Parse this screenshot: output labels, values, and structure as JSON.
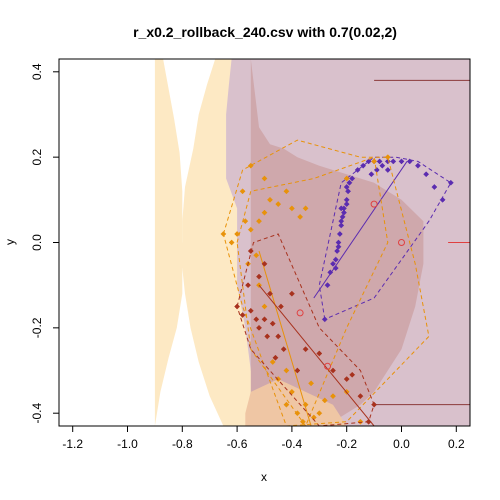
{
  "chart_data": {
    "type": "scatter",
    "title": "r_x0.2_rollback_240.csv with 0.7(0.02,2)",
    "xlabel": "x",
    "ylabel": "y",
    "xlim": [
      -1.25,
      0.25
    ],
    "ylim": [
      -0.43,
      0.43
    ],
    "xticks": [
      -1.2,
      -1.0,
      -0.8,
      -0.6,
      -0.4,
      -0.2,
      0.0,
      0.2
    ],
    "xtick_labels": [
      "-1.2",
      "-1.0",
      "-0.8",
      "-0.6",
      "-0.4",
      "-0.2",
      "0.0",
      "0.2"
    ],
    "yticks": [
      -0.4,
      -0.2,
      0.0,
      0.2,
      0.4
    ],
    "ytick_labels": [
      "-0.4",
      "-0.2",
      "0.0",
      "0.2",
      "0.4"
    ],
    "grid": false,
    "regions": [
      {
        "color": "#fde9c4",
        "points": [
          [
            -0.9,
            -0.43
          ],
          [
            -0.9,
            0.43
          ],
          [
            -0.87,
            0.43
          ],
          [
            -0.85,
            0.36
          ],
          [
            -0.83,
            0.29
          ],
          [
            -0.81,
            0.21
          ],
          [
            -0.8,
            0.12
          ],
          [
            -0.8,
            -0.12
          ],
          [
            -0.82,
            -0.2
          ],
          [
            -0.85,
            -0.27
          ],
          [
            -0.88,
            -0.35
          ],
          [
            -0.9,
            -0.43
          ]
        ]
      },
      {
        "color": "#fde9c4",
        "points": [
          [
            -0.68,
            0.43
          ],
          [
            -0.71,
            0.37
          ],
          [
            -0.74,
            0.3
          ],
          [
            -0.76,
            0.22
          ],
          [
            -0.79,
            0.13
          ],
          [
            -0.8,
            0.05
          ],
          [
            -0.8,
            0.0
          ],
          [
            -0.88,
            0.0
          ],
          [
            -0.88,
            -0.04
          ],
          [
            -0.8,
            -0.06
          ],
          [
            -0.79,
            -0.12
          ],
          [
            -0.77,
            -0.2
          ],
          [
            -0.74,
            -0.28
          ],
          [
            -0.7,
            -0.36
          ],
          [
            -0.65,
            -0.43
          ],
          [
            0.25,
            -0.43
          ],
          [
            0.25,
            0.43
          ]
        ]
      },
      {
        "color": "#d9c1cc",
        "points": [
          [
            -0.62,
            0.43
          ],
          [
            -0.63,
            0.37
          ],
          [
            -0.64,
            0.3
          ],
          [
            -0.64,
            0.25
          ],
          [
            -0.64,
            0.15
          ],
          [
            -0.6,
            0.08
          ],
          [
            -0.6,
            -0.1
          ],
          [
            -0.57,
            -0.2
          ],
          [
            -0.55,
            -0.3
          ],
          [
            -0.5,
            -0.38
          ],
          [
            -0.48,
            -0.43
          ],
          [
            0.25,
            -0.43
          ],
          [
            0.25,
            0.43
          ]
        ]
      },
      {
        "color": "#cfa8ac",
        "points": [
          [
            -0.55,
            0.43
          ],
          [
            -0.52,
            0.27
          ],
          [
            -0.48,
            0.23
          ],
          [
            -0.43,
            0.22
          ],
          [
            -0.38,
            0.2
          ],
          [
            -0.3,
            0.18
          ],
          [
            -0.2,
            0.16
          ],
          [
            -0.1,
            0.14
          ],
          [
            0.0,
            0.1
          ],
          [
            0.08,
            0.05
          ],
          [
            0.08,
            -0.05
          ],
          [
            0.05,
            -0.15
          ],
          [
            0.0,
            -0.25
          ],
          [
            -0.05,
            -0.3
          ],
          [
            -0.1,
            -0.35
          ],
          [
            -0.15,
            -0.38
          ],
          [
            -0.2,
            -0.4
          ],
          [
            -0.25,
            -0.42
          ],
          [
            -0.3,
            -0.43
          ],
          [
            -0.55,
            -0.43
          ]
        ]
      },
      {
        "color": "#efc6a4",
        "points": [
          [
            -0.57,
            -0.43
          ],
          [
            -0.57,
            -0.4
          ],
          [
            -0.55,
            -0.35
          ],
          [
            -0.45,
            -0.32
          ],
          [
            -0.35,
            -0.35
          ],
          [
            -0.25,
            -0.38
          ],
          [
            -0.2,
            -0.43
          ]
        ]
      },
      {
        "color": "#d9c1cc",
        "points": [
          [
            -0.35,
            0.43
          ],
          [
            -0.35,
            0.33
          ],
          [
            -0.3,
            0.33
          ],
          [
            -0.2,
            0.34
          ],
          [
            -0.1,
            0.35
          ],
          [
            0.0,
            0.36
          ],
          [
            0.1,
            0.38
          ],
          [
            0.25,
            0.38
          ],
          [
            0.25,
            0.43
          ]
        ]
      }
    ],
    "hlines": [
      {
        "y": 0.38,
        "x_from": -0.1,
        "x_to": 0.25,
        "color": "#8b3a3a"
      },
      {
        "y": -0.38,
        "x_from": -0.1,
        "x_to": 0.25,
        "color": "#8b3a3a"
      },
      {
        "y": 0.0,
        "x_from": 0.17,
        "x_to": 0.25,
        "color": "#e04040"
      }
    ],
    "series": [
      {
        "color": "#5b2cb0",
        "points": [
          [
            -0.28,
            -0.18
          ],
          [
            -0.25,
            -0.05
          ],
          [
            -0.24,
            -0.06
          ],
          [
            -0.235,
            -0.02
          ],
          [
            -0.23,
            0.0
          ],
          [
            -0.225,
            0.02
          ],
          [
            -0.22,
            0.04
          ],
          [
            -0.215,
            0.06
          ],
          [
            -0.21,
            0.08
          ],
          [
            -0.2,
            0.1
          ],
          [
            -0.195,
            0.12
          ],
          [
            -0.19,
            0.14
          ],
          [
            -0.18,
            0.15
          ],
          [
            -0.16,
            0.17
          ],
          [
            -0.14,
            0.18
          ],
          [
            -0.12,
            0.19
          ],
          [
            -0.1,
            0.19
          ],
          [
            -0.08,
            0.19
          ],
          [
            -0.05,
            0.19
          ],
          [
            -0.03,
            0.19
          ],
          [
            0.0,
            0.19
          ],
          [
            0.03,
            0.19
          ],
          [
            0.06,
            0.18
          ],
          [
            0.09,
            0.16
          ],
          [
            0.12,
            0.13
          ],
          [
            0.15,
            0.1
          ],
          [
            0.18,
            0.14
          ],
          [
            -0.05,
            0.17
          ],
          [
            -0.07,
            0.18
          ],
          [
            -0.09,
            0.17
          ],
          [
            -0.11,
            0.16
          ],
          [
            -0.2,
            0.13
          ],
          [
            -0.22,
            0.08
          ],
          [
            -0.23,
            -0.01
          ],
          [
            -0.24,
            -0.04
          ],
          [
            -0.26,
            -0.07
          ],
          [
            -0.27,
            -0.1
          ],
          [
            -0.22,
            0.05
          ],
          [
            -0.21,
            0.07
          ],
          [
            -0.2,
            0.09
          ]
        ],
        "hull": [
          [
            -0.28,
            -0.18
          ],
          [
            -0.3,
            -0.1
          ],
          [
            -0.22,
            0.14
          ],
          [
            -0.18,
            0.16
          ],
          [
            -0.1,
            0.2
          ],
          [
            -0.02,
            0.2
          ],
          [
            0.06,
            0.19
          ],
          [
            0.18,
            0.14
          ],
          [
            0.1,
            0.05
          ],
          [
            -0.1,
            -0.13
          ],
          [
            -0.28,
            -0.18
          ]
        ],
        "segment": [
          [
            -0.32,
            -0.13
          ],
          [
            0.02,
            0.19
          ]
        ]
      },
      {
        "color": "#e8920a",
        "points": [
          [
            -0.65,
            0.02
          ],
          [
            -0.62,
            0.0
          ],
          [
            -0.6,
            0.02
          ],
          [
            -0.57,
            0.05
          ],
          [
            -0.55,
            0.03
          ],
          [
            -0.52,
            0.05
          ],
          [
            -0.5,
            0.07
          ],
          [
            -0.48,
            0.1
          ],
          [
            -0.45,
            0.09
          ],
          [
            -0.42,
            0.12
          ],
          [
            -0.4,
            0.08
          ],
          [
            -0.37,
            0.06
          ],
          [
            -0.35,
            0.08
          ],
          [
            -0.5,
            0.15
          ],
          [
            -0.55,
            0.18
          ],
          [
            -0.58,
            0.12
          ],
          [
            -0.56,
            -0.05
          ],
          [
            -0.53,
            -0.03
          ],
          [
            -0.52,
            -0.1
          ],
          [
            -0.5,
            -0.15
          ],
          [
            -0.47,
            -0.28
          ],
          [
            -0.45,
            -0.32
          ],
          [
            -0.42,
            -0.3
          ],
          [
            -0.4,
            -0.35
          ],
          [
            -0.38,
            -0.4
          ],
          [
            -0.35,
            -0.38
          ],
          [
            -0.33,
            -0.33
          ],
          [
            -0.3,
            -0.4
          ],
          [
            -0.28,
            -0.37
          ],
          [
            -0.25,
            -0.36
          ],
          [
            -0.32,
            -0.41
          ],
          [
            -0.36,
            -0.42
          ],
          [
            -0.42,
            -0.38
          ],
          [
            -0.2,
            0.15
          ],
          [
            -0.1,
            0.19
          ],
          [
            -0.05,
            0.2
          ],
          [
            -0.2,
            -0.35
          ],
          [
            -0.15,
            -0.42
          ]
        ],
        "hull": [
          [
            -0.65,
            0.02
          ],
          [
            -0.58,
            0.17
          ],
          [
            -0.38,
            0.24
          ],
          [
            -0.15,
            0.2
          ],
          [
            -0.05,
            0.2
          ],
          [
            0.05,
            -0.05
          ],
          [
            0.1,
            -0.22
          ],
          [
            -0.2,
            -0.42
          ],
          [
            -0.42,
            -0.43
          ],
          [
            -0.58,
            -0.15
          ],
          [
            -0.65,
            0.02
          ]
        ],
        "hull2": [
          [
            -0.6,
            0.0
          ],
          [
            -0.55,
            0.12
          ],
          [
            -0.32,
            0.15
          ],
          [
            -0.1,
            0.2
          ],
          [
            -0.05,
            0.0
          ],
          [
            -0.2,
            -0.2
          ],
          [
            -0.35,
            -0.43
          ],
          [
            -0.55,
            -0.25
          ],
          [
            -0.6,
            0.0
          ]
        ],
        "segment": [
          [
            -0.52,
            -0.02
          ],
          [
            -0.33,
            -0.43
          ]
        ]
      },
      {
        "color": "#a8321e",
        "points": [
          [
            -0.6,
            -0.15
          ],
          [
            -0.58,
            -0.17
          ],
          [
            -0.56,
            -0.1
          ],
          [
            -0.55,
            -0.16
          ],
          [
            -0.53,
            -0.18
          ],
          [
            -0.52,
            -0.2
          ],
          [
            -0.5,
            -0.18
          ],
          [
            -0.49,
            -0.22
          ],
          [
            -0.47,
            -0.19
          ],
          [
            -0.45,
            -0.22
          ],
          [
            -0.52,
            -0.08
          ],
          [
            -0.5,
            -0.05
          ],
          [
            -0.55,
            -0.02
          ],
          [
            -0.48,
            -0.12
          ],
          [
            -0.44,
            -0.15
          ],
          [
            -0.4,
            -0.12
          ],
          [
            -0.38,
            -0.3
          ],
          [
            -0.35,
            -0.25
          ],
          [
            -0.3,
            -0.26
          ],
          [
            -0.25,
            -0.3
          ],
          [
            -0.2,
            -0.32
          ],
          [
            -0.18,
            -0.31
          ],
          [
            -0.15,
            -0.36
          ],
          [
            -0.1,
            -0.38
          ],
          [
            -0.12,
            -0.42
          ],
          [
            -0.43,
            -0.25
          ],
          [
            -0.46,
            -0.27
          ]
        ],
        "hull": [
          [
            -0.6,
            -0.15
          ],
          [
            -0.54,
            0.0
          ],
          [
            -0.45,
            0.02
          ],
          [
            -0.3,
            -0.2
          ],
          [
            -0.15,
            -0.3
          ],
          [
            -0.1,
            -0.38
          ],
          [
            -0.12,
            -0.42
          ],
          [
            -0.3,
            -0.43
          ],
          [
            -0.55,
            -0.25
          ],
          [
            -0.6,
            -0.15
          ]
        ],
        "segment": [
          [
            -0.52,
            -0.1
          ],
          [
            -0.1,
            -0.43
          ]
        ]
      }
    ],
    "centers": [
      {
        "x": -0.1,
        "y": 0.09,
        "color": "#e04040"
      },
      {
        "x": 0.0,
        "y": 0.0,
        "color": "#e04040"
      },
      {
        "x": -0.37,
        "y": -0.165,
        "color": "#e04040"
      },
      {
        "x": -0.27,
        "y": -0.29,
        "color": "#e04040"
      }
    ]
  }
}
